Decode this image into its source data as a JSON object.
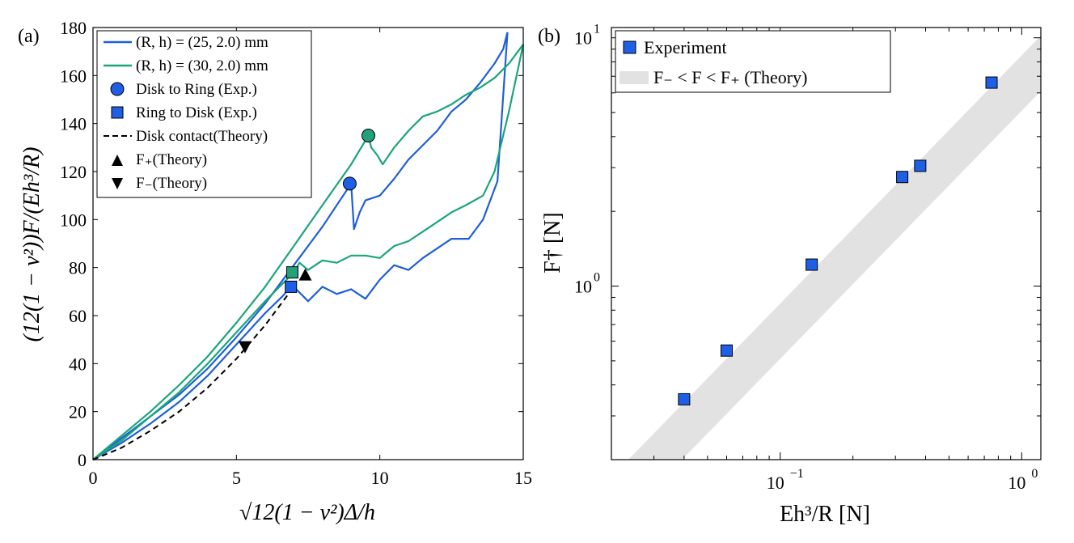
{
  "colors": {
    "blue": "#1f5fd8",
    "green": "#1aa57a",
    "marker_blue": "#1f5fe6",
    "marker_green": "#22a07a",
    "band": "#e2e2e2",
    "black": "#000000"
  },
  "chart_data": [
    {
      "type": "line",
      "panel_label": "(a)",
      "xlabel": "√12(1 − ν²)Δ/h",
      "ylabel": "(12(1 − ν²))F/(Eh³/R)",
      "xlim": [
        0,
        15
      ],
      "ylim": [
        0,
        180
      ],
      "xticks": [
        0,
        5,
        10,
        15
      ],
      "yticks": [
        0,
        20,
        40,
        60,
        80,
        100,
        120,
        140,
        160,
        180
      ],
      "xtick_labels": [
        "0",
        "5",
        "10",
        "15"
      ],
      "ytick_labels": [
        "0",
        "20",
        "40",
        "60",
        "80",
        "100",
        "120",
        "140",
        "160",
        "180"
      ],
      "legend_position": "top-left",
      "legend": [
        {
          "key": "blue_line",
          "label": "(R, h) = (25, 2.0) mm"
        },
        {
          "key": "green_line",
          "label": "(R, h) = (30, 2.0) mm"
        },
        {
          "key": "circle",
          "label": "Disk to Ring (Exp.)"
        },
        {
          "key": "square",
          "label": "Ring to Disk (Exp.)"
        },
        {
          "key": "dashed",
          "label": "Disk contact(Theory)"
        },
        {
          "key": "up_triangle",
          "label": "F₊(Theory)"
        },
        {
          "key": "down_triangle",
          "label": "F₋(Theory)"
        }
      ],
      "series": [
        {
          "name": "(R, h) = (25, 2.0) mm, loading",
          "color_key": "blue",
          "x": [
            0,
            1,
            2,
            3,
            4,
            5,
            6,
            7,
            8,
            9,
            9.1,
            9.3,
            9.5,
            10,
            10.5,
            11,
            11.5,
            12,
            12.5,
            13,
            13.5,
            14,
            14.3,
            14.45
          ],
          "y": [
            0,
            9,
            18,
            27,
            38,
            51,
            65,
            81,
            97,
            115,
            96,
            103,
            108,
            110,
            117,
            125,
            131,
            137,
            145,
            150,
            157,
            165,
            171,
            178
          ]
        },
        {
          "name": "(R, h) = (25, 2.0) mm, unloading",
          "color_key": "blue",
          "x": [
            14.45,
            14.1,
            13.6,
            13.1,
            12.5,
            12,
            11.5,
            11,
            10.5,
            10,
            9.5,
            9,
            8.5,
            8,
            7.5,
            7,
            6.9,
            6.6,
            6,
            5,
            4,
            3,
            2,
            1,
            0
          ],
          "y": [
            178,
            116,
            100,
            92,
            92,
            88,
            84,
            79,
            81,
            75,
            67,
            71,
            69,
            72,
            66,
            72,
            72,
            68,
            61,
            48,
            35,
            24,
            15,
            7,
            0
          ]
        },
        {
          "name": "(R, h) = (30, 2.0) mm, loading",
          "color_key": "green",
          "x": [
            0,
            1,
            2,
            3,
            4,
            5,
            6,
            7,
            8,
            9,
            9.6,
            9.7,
            9.9,
            10.1,
            10.5,
            11,
            11.5,
            12,
            12.5,
            13,
            13.5,
            14,
            14.5,
            15
          ],
          "y": [
            0,
            10,
            20,
            31,
            43,
            57,
            72,
            89,
            106,
            123,
            135,
            130,
            127,
            123,
            130,
            137,
            143,
            145,
            148,
            152,
            155,
            159,
            165,
            173
          ]
        },
        {
          "name": "(R, h) = (30, 2.0) mm, unloading",
          "color_key": "green",
          "x": [
            15,
            14.5,
            14,
            13.6,
            13,
            12.5,
            12,
            11.5,
            11,
            10.5,
            10,
            9.5,
            9,
            8.5,
            8,
            7.5,
            7.2,
            7,
            6,
            5,
            4,
            3,
            2,
            1,
            0
          ],
          "y": [
            173,
            145,
            120,
            110,
            106,
            103,
            99,
            95,
            91,
            89,
            84,
            85,
            85,
            82,
            83,
            79,
            82,
            78,
            66,
            53,
            40,
            28,
            18,
            8,
            0
          ]
        },
        {
          "name": "Disk contact(Theory)",
          "style": "dashed",
          "color_key": "black",
          "x": [
            0,
            1,
            2,
            3,
            4,
            5,
            6,
            7
          ],
          "y": [
            0,
            5,
            12,
            20,
            30,
            42,
            56,
            72
          ]
        }
      ],
      "markers": [
        {
          "name": "disk-to-ring-blue",
          "shape": "circle",
          "color_key": "marker_blue",
          "x": 8.95,
          "y": 115
        },
        {
          "name": "disk-to-ring-green",
          "shape": "circle",
          "color_key": "marker_green",
          "x": 9.6,
          "y": 135
        },
        {
          "name": "ring-to-disk-blue",
          "shape": "square",
          "color_key": "marker_blue",
          "x": 6.9,
          "y": 72
        },
        {
          "name": "ring-to-disk-green",
          "shape": "square",
          "color_key": "marker_green",
          "x": 6.95,
          "y": 78
        },
        {
          "name": "f-plus-theory",
          "shape": "up_triangle",
          "color_key": "black",
          "x": 7.4,
          "y": 77
        },
        {
          "name": "f-minus-theory",
          "shape": "down_triangle",
          "color_key": "black",
          "x": 5.3,
          "y": 47
        }
      ]
    },
    {
      "type": "scatter",
      "panel_label": "(b)",
      "xscale": "log",
      "yscale": "log",
      "xlabel": "Eh³/R [N]",
      "ylabel": "F† [N]",
      "xlim": [
        0.02,
        1.2
      ],
      "ylim": [
        0.2,
        11
      ],
      "xtick_labels": [
        {
          "base": "10",
          "exp": "−1",
          "value": 0.1
        },
        {
          "base": "10",
          "exp": "0",
          "value": 1
        }
      ],
      "ytick_labels": [
        {
          "base": "10",
          "exp": "0",
          "value": 1
        },
        {
          "base": "10",
          "exp": "1",
          "value": 10
        }
      ],
      "legend_position": "top-left",
      "legend": [
        {
          "key": "square",
          "label": "Experiment"
        },
        {
          "key": "band",
          "label": "F₋ < F < F₊ (Theory)"
        }
      ],
      "points": [
        {
          "x": 0.04,
          "y": 0.35
        },
        {
          "x": 0.06,
          "y": 0.55
        },
        {
          "x": 0.135,
          "y": 1.22
        },
        {
          "x": 0.32,
          "y": 2.75
        },
        {
          "x": 0.38,
          "y": 3.05
        },
        {
          "x": 0.75,
          "y": 6.6
        }
      ],
      "band": {
        "upper": {
          "x": [
            0.0235,
            1.2
          ],
          "y": [
            0.2,
            10.2
          ]
        },
        "lower": {
          "x": [
            0.0392,
            1.2
          ],
          "y": [
            0.2,
            6.1
          ]
        }
      }
    }
  ]
}
